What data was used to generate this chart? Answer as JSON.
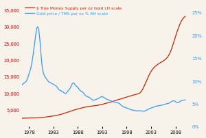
{
  "left_label_color": "#cc0000",
  "right_label_color": "#3399ff",
  "left_yticks": [
    5000,
    10000,
    15000,
    20000,
    25000,
    30000,
    35000
  ],
  "right_yticks": [
    0,
    5,
    10,
    15,
    20,
    25
  ],
  "xlim_start": 1976.5,
  "xlim_end": 2011,
  "ylim_left": [
    0,
    37000
  ],
  "ylim_right": [
    0,
    27
  ],
  "legend1_label": "$ True Money Supply per oz Gold LH scale",
  "legend2_label": "Gold price / TMS per oz % RH scale",
  "line1_color": "#cc2200",
  "line2_color": "#3399ff",
  "bg_color": "#f7f3eb",
  "xticks": [
    1978,
    1983,
    1988,
    1993,
    1998,
    2003,
    2008
  ],
  "tms_years": [
    1976,
    1977,
    1978,
    1979,
    1980,
    1981,
    1982,
    1983,
    1984,
    1985,
    1986,
    1987,
    1988,
    1989,
    1990,
    1991,
    1992,
    1993,
    1994,
    1995,
    1996,
    1997,
    1998,
    1999,
    2000,
    2001,
    2002,
    2003,
    2004,
    2005,
    2006,
    2007,
    2008,
    2009,
    2010
  ],
  "tms_values": [
    2400,
    2450,
    2500,
    2520,
    2550,
    2700,
    2900,
    3100,
    3400,
    3800,
    4300,
    4800,
    5200,
    5600,
    5900,
    6100,
    6300,
    6600,
    7000,
    7400,
    7900,
    8300,
    8800,
    9200,
    9600,
    10500,
    13500,
    16500,
    18200,
    19200,
    20200,
    22500,
    27000,
    31000,
    33000
  ],
  "ratio_years": [
    1976.0,
    1976.5,
    1977.0,
    1977.5,
    1978.0,
    1978.3,
    1978.6,
    1979.0,
    1979.3,
    1979.6,
    1980.0,
    1980.3,
    1980.6,
    1981.0,
    1981.5,
    1982.0,
    1982.5,
    1983.0,
    1983.3,
    1983.6,
    1984.0,
    1984.5,
    1985.0,
    1985.5,
    1986.0,
    1986.5,
    1987.0,
    1987.5,
    1988.0,
    1988.5,
    1989.0,
    1989.5,
    1990.0,
    1990.5,
    1991.0,
    1991.5,
    1992.0,
    1992.5,
    1993.0,
    1993.5,
    1994.0,
    1994.5,
    1995.0,
    1995.5,
    1996.0,
    1996.5,
    1997.0,
    1997.5,
    1998.0,
    1998.5,
    1999.0,
    1999.5,
    2000.0,
    2000.5,
    2001.0,
    2001.5,
    2002.0,
    2002.5,
    2003.0,
    2003.5,
    2004.0,
    2004.5,
    2005.0,
    2005.5,
    2006.0,
    2006.5,
    2007.0,
    2007.5,
    2008.0,
    2008.5,
    2009.0,
    2009.5,
    2010.0
  ],
  "ratio_values": [
    8.5,
    9.0,
    9.5,
    10.0,
    11.5,
    12.5,
    14.0,
    17.0,
    19.5,
    21.5,
    21.0,
    18.0,
    14.0,
    11.5,
    10.5,
    9.8,
    9.5,
    9.2,
    9.0,
    8.8,
    8.2,
    7.8,
    7.5,
    7.2,
    7.8,
    8.5,
    9.5,
    9.0,
    8.5,
    7.8,
    7.5,
    6.8,
    6.5,
    6.2,
    5.8,
    5.8,
    6.0,
    6.3,
    6.5,
    6.2,
    5.9,
    5.7,
    5.5,
    5.3,
    5.2,
    5.0,
    4.5,
    4.2,
    4.0,
    3.8,
    3.6,
    3.5,
    3.4,
    3.4,
    3.4,
    3.3,
    3.5,
    3.8,
    4.0,
    4.2,
    4.4,
    4.5,
    4.6,
    4.7,
    4.9,
    5.0,
    5.3,
    5.6,
    5.4,
    5.2,
    5.5,
    5.7,
    5.8
  ]
}
